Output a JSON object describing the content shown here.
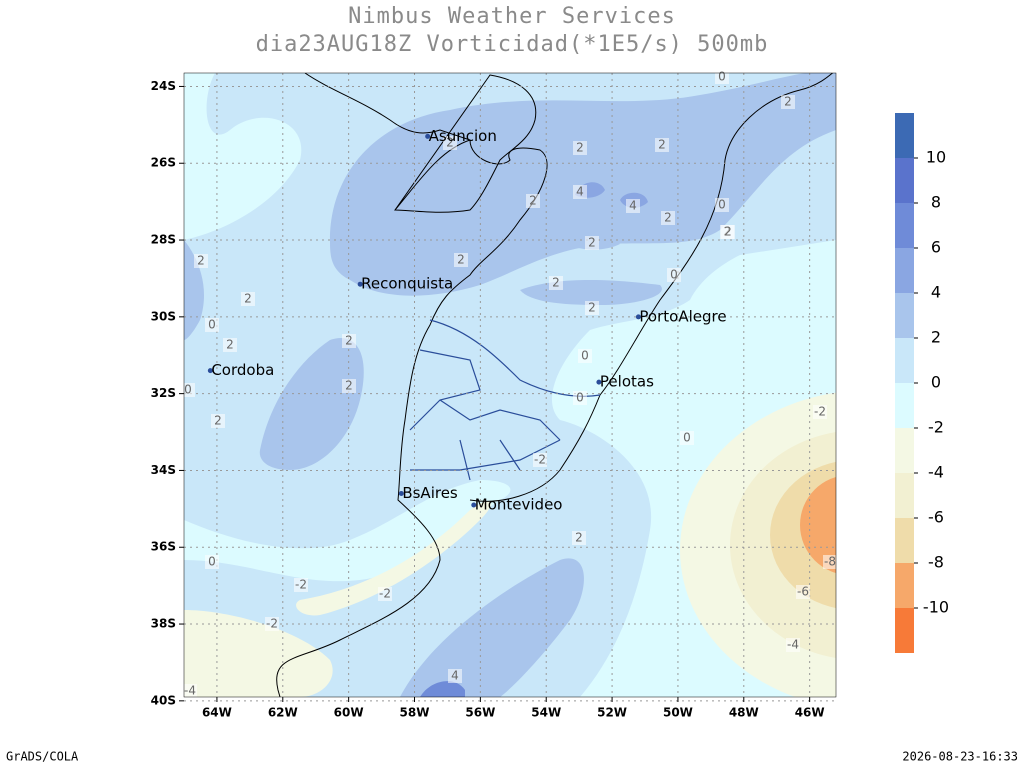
{
  "map": {
    "title": "Nimbus Weather Services",
    "subtitle": "dia23AUG18Z Vorticidad(*1E5/s) 500mb",
    "xlim": [
      -65,
      -45.2
    ],
    "ylim": [
      -23.65,
      -39.9
    ],
    "xticks": [
      {
        "value": -64,
        "label": "64W"
      },
      {
        "value": -62,
        "label": "62W"
      },
      {
        "value": -60,
        "label": "60W"
      },
      {
        "value": -58,
        "label": "58W"
      },
      {
        "value": -56,
        "label": "56W"
      },
      {
        "value": -54,
        "label": "54W"
      },
      {
        "value": -52,
        "label": "52W"
      },
      {
        "value": -50,
        "label": "50W"
      },
      {
        "value": -48,
        "label": "48W"
      },
      {
        "value": -46,
        "label": "46W"
      }
    ],
    "yticks": [
      {
        "value": -24,
        "label": "24S"
      },
      {
        "value": -26,
        "label": "26S"
      },
      {
        "value": -28,
        "label": "28S"
      },
      {
        "value": -30,
        "label": "30S"
      },
      {
        "value": -32,
        "label": "32S"
      },
      {
        "value": -34,
        "label": "34S"
      },
      {
        "value": -36,
        "label": "36S"
      },
      {
        "value": -38,
        "label": "38S"
      },
      {
        "value": -40,
        "label": "40S"
      }
    ],
    "grid": true,
    "cities": [
      {
        "name": "Asuncion",
        "lon": -57.6,
        "lat": -25.3
      },
      {
        "name": "Reconquista",
        "lon": -59.65,
        "lat": -29.15
      },
      {
        "name": "Cordoba",
        "lon": -64.2,
        "lat": -31.4
      },
      {
        "name": "BsAires",
        "lon": -58.4,
        "lat": -34.6
      },
      {
        "name": "Montevideo",
        "lon": -56.2,
        "lat": -34.9
      },
      {
        "name": "PortoAlegre",
        "lon": -51.2,
        "lat": -30.0
      },
      {
        "name": "Pelotas",
        "lon": -52.4,
        "lat": -31.7
      }
    ],
    "contour_labels": [
      2,
      2,
      4,
      4,
      2,
      2,
      2,
      2,
      2,
      2,
      0,
      2,
      2,
      2,
      2,
      0,
      0,
      0,
      2,
      2,
      0,
      2,
      0,
      -2,
      0,
      2,
      0,
      -2,
      -2,
      -2,
      4,
      -2,
      -8,
      -6,
      -4,
      0,
      2,
      2,
      2,
      -4
    ],
    "colorbar": {
      "colors": [
        "#3c6ab4",
        "#5a73cc",
        "#6f8bd8",
        "#8aa6e2",
        "#a9c5ec",
        "#c9e7f9",
        "#dcfbff",
        "#f4f8e4",
        "#f2f0d2",
        "#efdcaa",
        "#f6a86a",
        "#f77a38"
      ],
      "labels": [
        10,
        8,
        6,
        4,
        2,
        0,
        -2,
        -4,
        -6,
        -8,
        -10
      ]
    },
    "footer_left": "GrADS/COLA",
    "footer_right": "2026-08-23-16:33"
  }
}
